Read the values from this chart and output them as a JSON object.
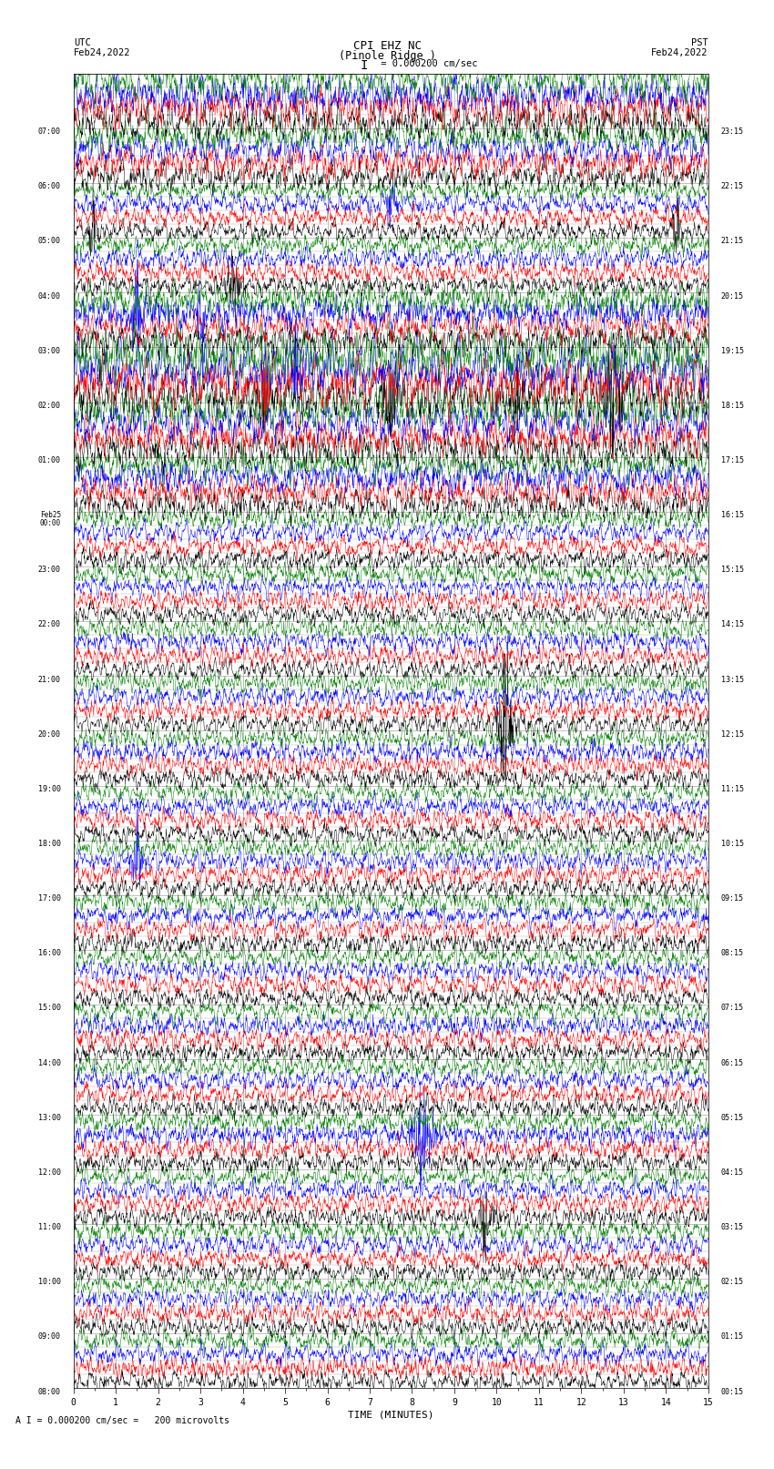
{
  "title_line1": "CPI EHZ NC",
  "title_line2": "(Pinole Ridge )",
  "scale_label": "I = 0.000200 cm/sec",
  "bottom_label": "A I = 0.000200 cm/sec =   200 microvolts",
  "left_header_line1": "UTC",
  "left_header_line2": "Feb24,2022",
  "right_header_line1": "PST",
  "right_header_line2": "Feb24,2022",
  "xlabel": "TIME (MINUTES)",
  "left_times": [
    "08:00",
    "09:00",
    "10:00",
    "11:00",
    "12:00",
    "13:00",
    "14:00",
    "15:00",
    "16:00",
    "17:00",
    "18:00",
    "19:00",
    "20:00",
    "21:00",
    "22:00",
    "23:00",
    "Feb25\n00:00",
    "01:00",
    "02:00",
    "03:00",
    "04:00",
    "05:00",
    "06:00",
    "07:00"
  ],
  "right_times": [
    "00:15",
    "01:15",
    "02:15",
    "03:15",
    "04:15",
    "05:15",
    "06:15",
    "07:15",
    "08:15",
    "09:15",
    "10:15",
    "11:15",
    "12:15",
    "13:15",
    "14:15",
    "15:15",
    "16:15",
    "17:15",
    "18:15",
    "19:15",
    "20:15",
    "21:15",
    "22:15",
    "23:15"
  ],
  "n_rows": 24,
  "traces_per_row": 4,
  "trace_colors": [
    "black",
    "red",
    "blue",
    "green"
  ],
  "minutes": 15,
  "bg_color": "white",
  "vgrid_color": "#aaaaaa",
  "hgrid_color": "#aaaaaa"
}
